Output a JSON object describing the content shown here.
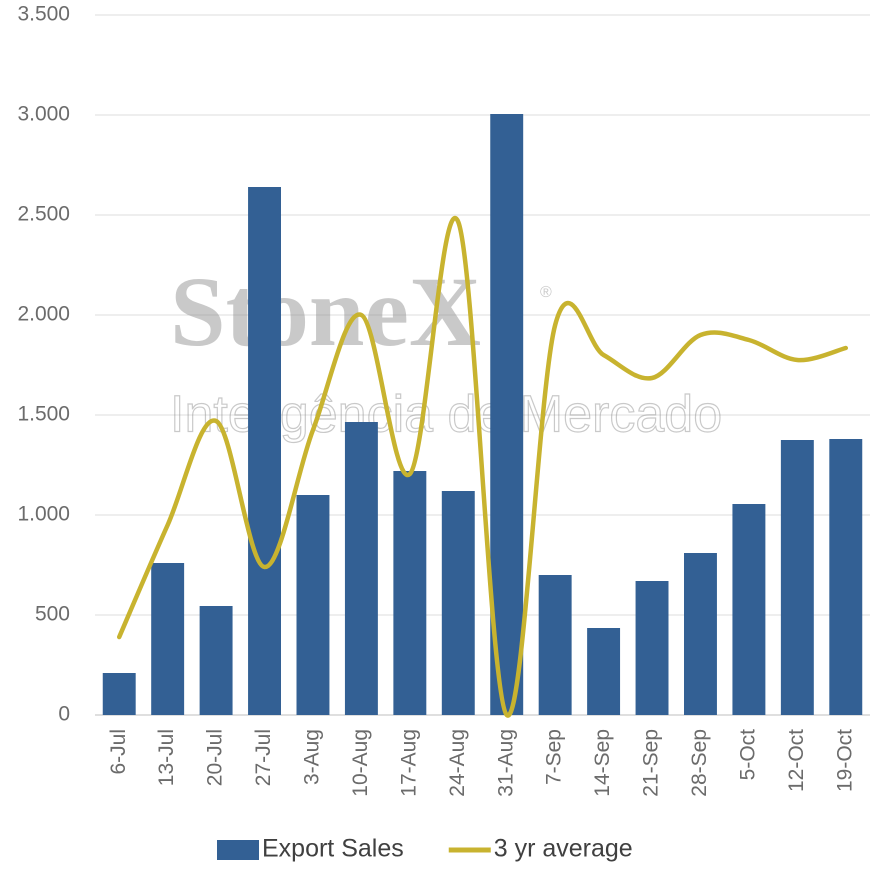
{
  "chart_data": {
    "type": "bar",
    "categories": [
      "6-Jul",
      "13-Jul",
      "20-Jul",
      "27-Jul",
      "3-Aug",
      "10-Aug",
      "17-Aug",
      "24-Aug",
      "31-Aug",
      "7-Sep",
      "14-Sep",
      "21-Sep",
      "28-Sep",
      "5-Oct",
      "12-Oct",
      "19-Oct"
    ],
    "series": [
      {
        "name": "Export Sales",
        "type": "bar",
        "color": "#336094",
        "values": [
          210,
          760,
          545,
          2640,
          1100,
          1465,
          1220,
          1120,
          3005,
          700,
          435,
          670,
          810,
          1055,
          1375,
          1380
        ]
      },
      {
        "name": "3 yr average",
        "type": "line",
        "color": "#c8b32f",
        "values": [
          390,
          950,
          1470,
          740,
          1425,
          2000,
          1205,
          2465,
          0,
          1950,
          1800,
          1685,
          1900,
          1875,
          1775,
          1835
        ]
      }
    ],
    "ylim": [
      0,
      3500
    ],
    "yticks": [
      0,
      500,
      {
        "value": 1000,
        "label": "1.000"
      },
      {
        "value": 1500,
        "label": "1.500"
      },
      {
        "value": 2000,
        "label": "2.000"
      },
      {
        "value": 2500,
        "label": "2.500"
      },
      {
        "value": 3000,
        "label": "3.000"
      },
      {
        "value": 3500,
        "label": "3.500"
      }
    ],
    "grid": true,
    "legend": "bottom",
    "watermark": {
      "brand": "StoneX",
      "mark": "®",
      "tagline": "Inteligência de Mercado"
    }
  }
}
